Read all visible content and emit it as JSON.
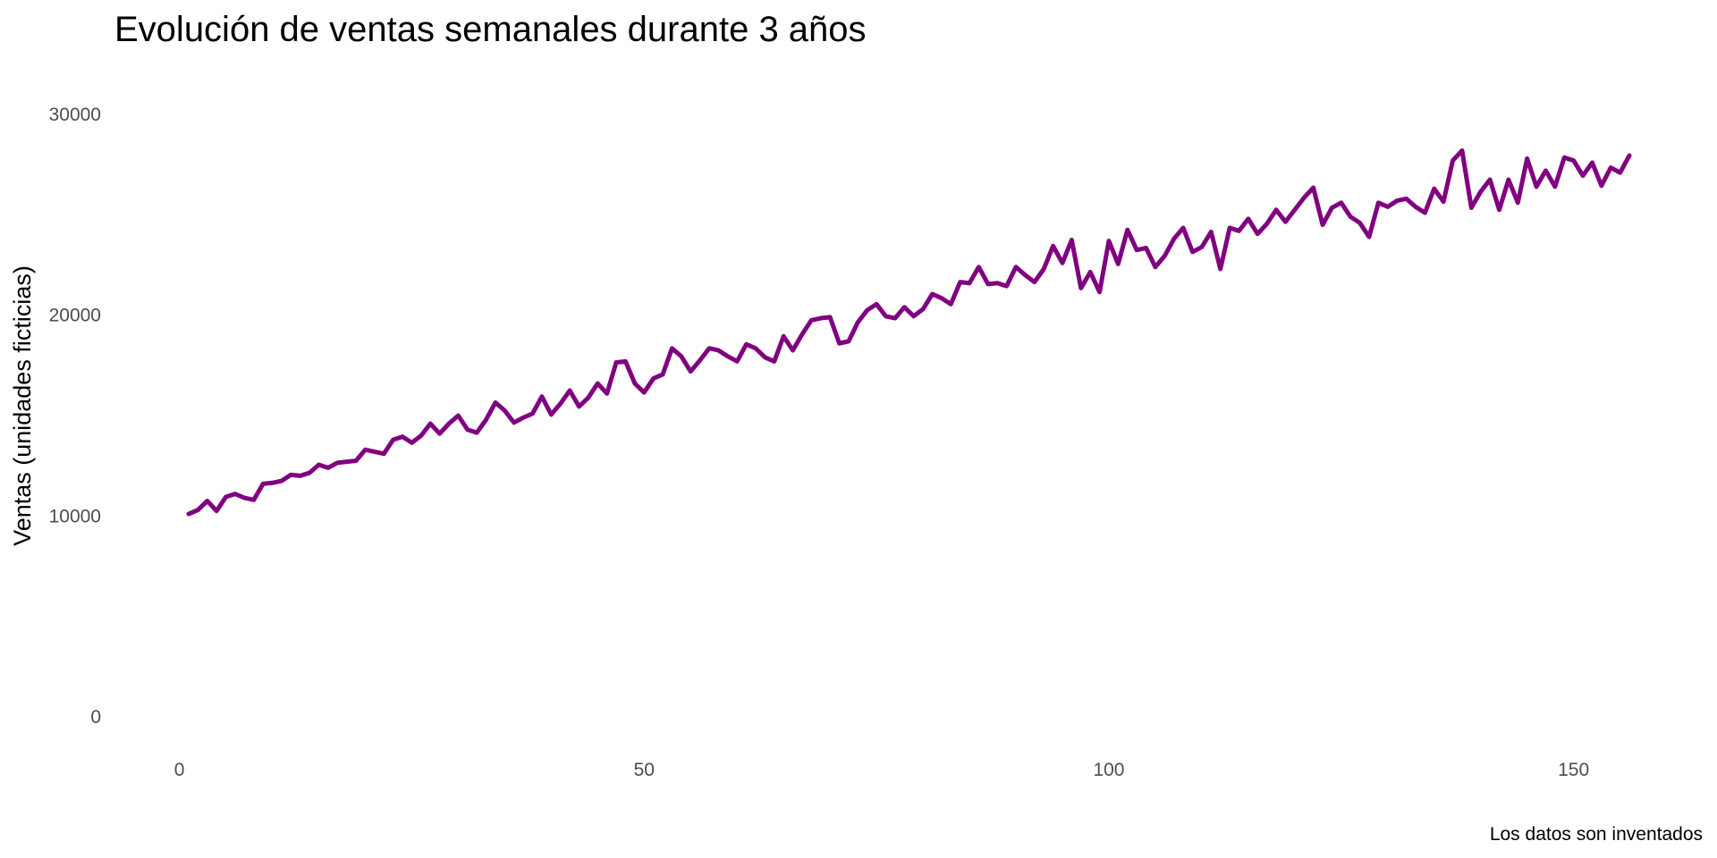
{
  "chart_data": {
    "type": "line",
    "title": "Evolución de ventas semanales durante 3 años",
    "subtitle": "",
    "xlabel": "",
    "ylabel": "Ventas (unidades ficticias)",
    "caption": "Los datos son inventados",
    "xlim": [
      1,
      156
    ],
    "ylim": [
      0,
      30000
    ],
    "x_ticks": [
      0,
      50,
      100,
      150
    ],
    "y_ticks": [
      0,
      10000,
      20000,
      30000
    ],
    "grid": false,
    "legend": "none",
    "line_color": "#800080",
    "series": [
      {
        "x": [
          1,
          2,
          3,
          4,
          5,
          6,
          7,
          8,
          9,
          10,
          11,
          12,
          13,
          14,
          15,
          16,
          17,
          18,
          19,
          20,
          21,
          22,
          23,
          24,
          25,
          26,
          27,
          28,
          29,
          30,
          31,
          32,
          33,
          34,
          35,
          36,
          37,
          38,
          39,
          40,
          41,
          42,
          43,
          44,
          45,
          46,
          47,
          48,
          49,
          50,
          51,
          52,
          53,
          54,
          55,
          56,
          57,
          58,
          59,
          60,
          61,
          62,
          63,
          64,
          65,
          66,
          67,
          68,
          69,
          70,
          71,
          72,
          73,
          74,
          75,
          76,
          77,
          78,
          79,
          80,
          81,
          82,
          83,
          84,
          85,
          86,
          87,
          88,
          89,
          90,
          91,
          92,
          93,
          94,
          95,
          96,
          97,
          98,
          99,
          100,
          101,
          102,
          103,
          104,
          105,
          106,
          107,
          108,
          109,
          110,
          111,
          112,
          113,
          114,
          115,
          116,
          117,
          118,
          119,
          120,
          121,
          122,
          123,
          124,
          125,
          126,
          127,
          128,
          129,
          130,
          131,
          132,
          133,
          134,
          135,
          136,
          137,
          138,
          139,
          140,
          141,
          142,
          143,
          144,
          145,
          146,
          147,
          148,
          149,
          150,
          151,
          152,
          153,
          154,
          155,
          156
        ],
        "values": [
          10100,
          10300,
          10750,
          10250,
          10950,
          11100,
          10900,
          10800,
          11600,
          11650,
          11750,
          12050,
          12000,
          12150,
          12550,
          12400,
          12650,
          12700,
          12750,
          13300,
          13200,
          13100,
          13800,
          13950,
          13650,
          14000,
          14600,
          14100,
          14600,
          15000,
          14300,
          14150,
          14800,
          15650,
          15250,
          14650,
          14900,
          15100,
          15950,
          15050,
          15600,
          16250,
          15450,
          15900,
          16600,
          16100,
          17650,
          17700,
          16600,
          16150,
          16850,
          17050,
          18350,
          17950,
          17200,
          17750,
          18350,
          18250,
          17950,
          17700,
          18550,
          18350,
          17900,
          17700,
          18950,
          18250,
          19050,
          19750,
          19850,
          19900,
          18600,
          18700,
          19650,
          20250,
          20550,
          19950,
          19850,
          20400,
          19950,
          20300,
          21050,
          20850,
          20550,
          21650,
          21600,
          22400,
          21550,
          21600,
          21450,
          22400,
          22000,
          21650,
          22300,
          23450,
          22600,
          23750,
          21350,
          22150,
          21150,
          23700,
          22550,
          24250,
          23250,
          23350,
          22400,
          22950,
          23800,
          24350,
          23150,
          23400,
          24150,
          22300,
          24350,
          24200,
          24800,
          24050,
          24550,
          25250,
          24650,
          25250,
          25850,
          26350,
          24500,
          25350,
          25600,
          24900,
          24600,
          23900,
          25600,
          25400,
          25700,
          25800,
          25400,
          25100,
          26300,
          25650,
          27700,
          28200,
          25350,
          26150,
          26750,
          25250,
          26750,
          25600,
          27800,
          26400,
          27200,
          26400,
          27850,
          27700,
          26950,
          27600,
          26450,
          27350,
          27100,
          27950
        ]
      }
    ]
  }
}
